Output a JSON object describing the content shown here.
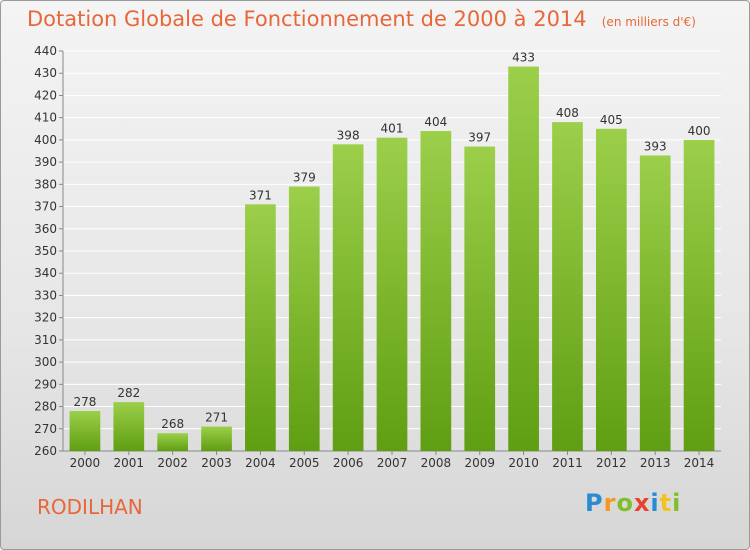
{
  "header": {
    "title": "Dotation Globale de Fonctionnement de 2000 à 2014",
    "unit": "(en milliers d'€)"
  },
  "footer": {
    "commune": "RODILHAN",
    "logo_text": "Proxiti"
  },
  "colors": {
    "title": "#e8673a",
    "bar_top": "#9ccf4a",
    "bar_bottom": "#5f9e12",
    "grid": "#ffffff"
  },
  "chart_data": {
    "type": "bar",
    "title": "Dotation Globale de Fonctionnement de 2000 à 2014",
    "subtitle": "(en milliers d'€)",
    "categories": [
      "2000",
      "2001",
      "2002",
      "2003",
      "2004",
      "2005",
      "2006",
      "2007",
      "2008",
      "2009",
      "2010",
      "2011",
      "2012",
      "2013",
      "2014"
    ],
    "values": [
      278,
      282,
      268,
      271,
      371,
      379,
      398,
      401,
      404,
      397,
      433,
      408,
      405,
      393,
      400
    ],
    "ylim": [
      260,
      440
    ],
    "ytick_step": 10,
    "grid": true,
    "data_labels": true
  }
}
